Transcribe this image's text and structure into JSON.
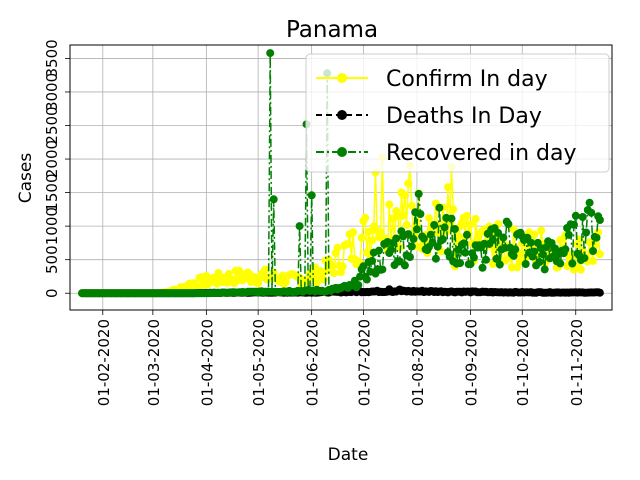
{
  "chart_data": {
    "type": "line",
    "title": "Panama",
    "xlabel": "Date",
    "ylabel": "Cases",
    "grid": true,
    "legend_position": "top-right",
    "x_start": "2020-01-20",
    "x_end": "2020-11-15",
    "xlim": [
      "2020-01-13",
      "2020-11-22"
    ],
    "ylim": [
      -250,
      3700
    ],
    "x_ticks": [
      "01-02-2020",
      "01-03-2020",
      "01-04-2020",
      "01-05-2020",
      "01-06-2020",
      "01-07-2020",
      "01-08-2020",
      "01-09-2020",
      "01-10-2020",
      "01-11-2020"
    ],
    "x_tick_dates": [
      "2020-02-01",
      "2020-03-01",
      "2020-04-01",
      "2020-05-01",
      "2020-06-01",
      "2020-07-01",
      "2020-08-01",
      "2020-09-01",
      "2020-10-01",
      "2020-11-01"
    ],
    "y_ticks": [
      "0",
      "500",
      "1000",
      "1500",
      "2000",
      "2500",
      "3000",
      "3500"
    ],
    "y_tick_values": [
      0,
      500,
      1000,
      1500,
      2000,
      2500,
      3000,
      3500
    ],
    "series": [
      {
        "name": "Confirm In day",
        "color": "#ffff00",
        "marker": "circle",
        "style": "solid",
        "anchors": [
          [
            "2020-01-20",
            0
          ],
          [
            "2020-03-05",
            0
          ],
          [
            "2020-03-15",
            50
          ],
          [
            "2020-03-25",
            150
          ],
          [
            "2020-04-05",
            200
          ],
          [
            "2020-04-20",
            250
          ],
          [
            "2020-05-05",
            250
          ],
          [
            "2020-05-20",
            200
          ],
          [
            "2020-06-01",
            250
          ],
          [
            "2020-06-10",
            350
          ],
          [
            "2020-06-20",
            600
          ],
          [
            "2020-06-30",
            800
          ],
          [
            "2020-07-10",
            1100
          ],
          [
            "2020-07-20",
            1250
          ],
          [
            "2020-07-30",
            1150
          ],
          [
            "2020-08-10",
            1000
          ],
          [
            "2020-08-20",
            900
          ],
          [
            "2020-08-30",
            800
          ],
          [
            "2020-09-10",
            750
          ],
          [
            "2020-09-20",
            700
          ],
          [
            "2020-10-01",
            650
          ],
          [
            "2020-10-15",
            700
          ],
          [
            "2020-11-01",
            600
          ],
          [
            "2020-11-15",
            650
          ]
        ],
        "spikes": [
          [
            "2020-07-12",
            2020
          ],
          [
            "2020-07-08",
            1800
          ],
          [
            "2020-07-28",
            1900
          ],
          [
            "2020-08-19",
            1580
          ],
          [
            "2020-08-21",
            1880
          ],
          [
            "2020-08-23",
            400
          ]
        ]
      },
      {
        "name": "Deaths In Day",
        "color": "#000000",
        "marker": "circle",
        "style": "dashed",
        "anchors": [
          [
            "2020-01-20",
            0
          ],
          [
            "2020-03-20",
            0
          ],
          [
            "2020-04-05",
            5
          ],
          [
            "2020-05-01",
            10
          ],
          [
            "2020-06-01",
            12
          ],
          [
            "2020-06-20",
            20
          ],
          [
            "2020-07-05",
            25
          ],
          [
            "2020-07-20",
            30
          ],
          [
            "2020-08-15",
            25
          ],
          [
            "2020-09-15",
            15
          ],
          [
            "2020-10-15",
            12
          ],
          [
            "2020-11-15",
            10
          ]
        ],
        "spikes": [
          [
            "2020-07-16",
            60
          ],
          [
            "2020-07-22",
            55
          ]
        ]
      },
      {
        "name": "Recovered in day",
        "color": "#008000",
        "marker": "circle",
        "style": "dashdot",
        "anchors": [
          [
            "2020-01-20",
            0
          ],
          [
            "2020-04-01",
            0
          ],
          [
            "2020-04-15",
            10
          ],
          [
            "2020-05-01",
            20
          ],
          [
            "2020-05-20",
            30
          ],
          [
            "2020-06-10",
            40
          ],
          [
            "2020-06-25",
            100
          ],
          [
            "2020-07-05",
            400
          ],
          [
            "2020-07-15",
            600
          ],
          [
            "2020-07-25",
            750
          ],
          [
            "2020-08-05",
            1000
          ],
          [
            "2020-08-15",
            900
          ],
          [
            "2020-08-25",
            700
          ],
          [
            "2020-09-05",
            550
          ],
          [
            "2020-09-15",
            700
          ],
          [
            "2020-09-25",
            850
          ],
          [
            "2020-10-05",
            600
          ],
          [
            "2020-10-15",
            550
          ],
          [
            "2020-10-25",
            650
          ],
          [
            "2020-11-05",
            900
          ],
          [
            "2020-11-15",
            1050
          ]
        ],
        "spikes": [
          [
            "2020-05-08",
            3580
          ],
          [
            "2020-05-10",
            1400
          ],
          [
            "2020-05-25",
            1000
          ],
          [
            "2020-05-29",
            2520
          ],
          [
            "2020-06-10",
            3280
          ],
          [
            "2020-06-01",
            1460
          ],
          [
            "2020-08-02",
            1480
          ],
          [
            "2020-09-23",
            1030
          ],
          [
            "2020-11-08",
            1240
          ]
        ]
      }
    ]
  }
}
